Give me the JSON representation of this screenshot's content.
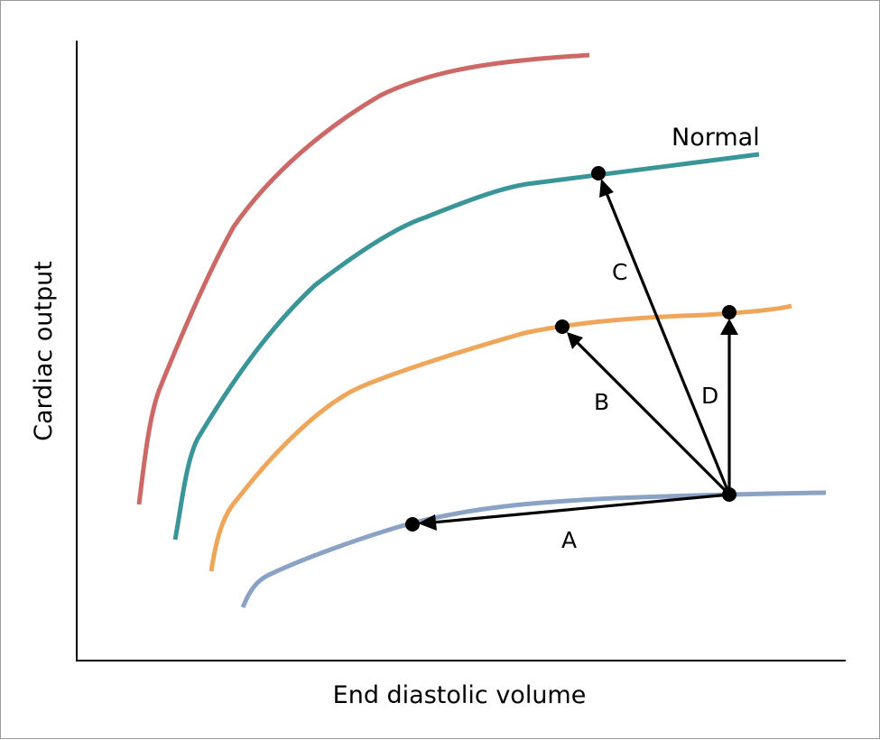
{
  "diagram": {
    "x_axis_label": "End diastolic volume",
    "y_axis_label": "Cardiac output",
    "curves": [
      {
        "id": "high",
        "label": "",
        "color": "#cc6966"
      },
      {
        "id": "normal",
        "label": "Normal",
        "color": "#3a9599"
      },
      {
        "id": "reduced",
        "label": "",
        "color": "#eea65a"
      },
      {
        "id": "low",
        "label": "",
        "color": "#8aa3c5"
      }
    ],
    "arrows": [
      {
        "id": "A",
        "label": "A"
      },
      {
        "id": "B",
        "label": "B"
      },
      {
        "id": "C",
        "label": "C"
      },
      {
        "id": "D",
        "label": "D"
      }
    ]
  }
}
